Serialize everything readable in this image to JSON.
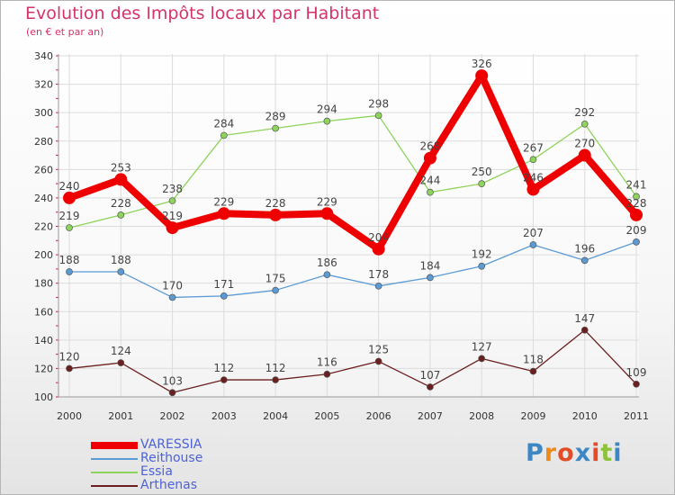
{
  "title": "Evolution des Impôts locaux par Habitant",
  "subtitle": "(en € et par an)",
  "logo": {
    "text": "Proxiti",
    "colors": [
      "#3d87c4",
      "#ef8b1c",
      "#e34c26",
      "#3d87c4",
      "#e34c26",
      "#8fc23b",
      "#3d87c4"
    ]
  },
  "chart_data": {
    "type": "line",
    "x": [
      2000,
      2001,
      2002,
      2003,
      2004,
      2005,
      2006,
      2007,
      2008,
      2009,
      2010,
      2011
    ],
    "ylim": [
      100,
      340
    ],
    "yticks": [
      100,
      120,
      140,
      160,
      180,
      200,
      220,
      240,
      260,
      280,
      300,
      320,
      340
    ],
    "grid": true,
    "legend_position": "bottom-left",
    "series": [
      {
        "name": "VARESSIA",
        "color": "#ee0000",
        "values": [
          240,
          253,
          219,
          229,
          228,
          229,
          204,
          268,
          326,
          246,
          270,
          228
        ]
      },
      {
        "name": "Reithouse",
        "color": "#5b9bd5",
        "values": [
          188,
          188,
          170,
          171,
          175,
          186,
          178,
          184,
          192,
          207,
          196,
          209
        ]
      },
      {
        "name": "Essia",
        "color": "#8ed35b",
        "values": [
          219,
          228,
          238,
          284,
          289,
          294,
          298,
          244,
          250,
          267,
          292,
          241
        ]
      },
      {
        "name": "Arthenas",
        "color": "#6b1f1f",
        "values": [
          120,
          124,
          103,
          112,
          112,
          116,
          125,
          107,
          127,
          118,
          147,
          109
        ]
      }
    ]
  }
}
